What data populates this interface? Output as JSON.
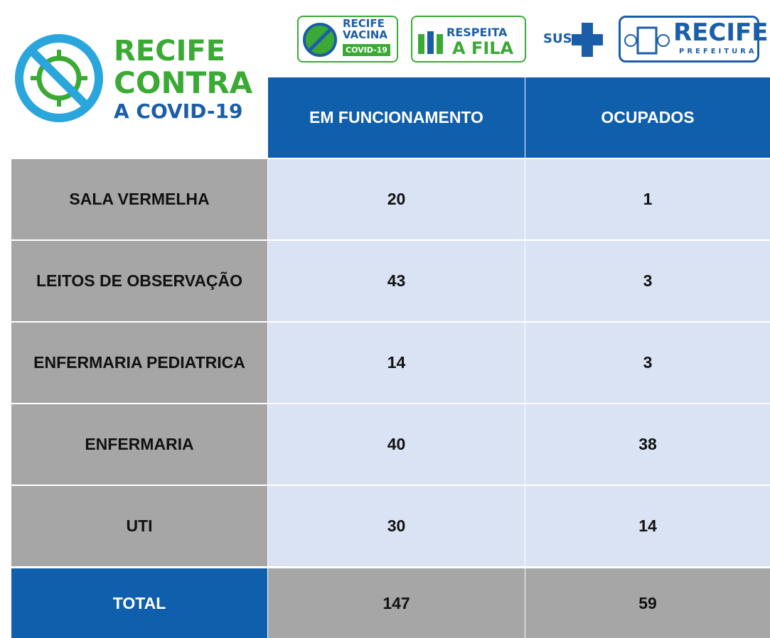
{
  "logos": {
    "main": [
      "RECIFE",
      "CONTRA",
      "A COVID-19"
    ],
    "vacina": [
      "RECIFE",
      "VACINA",
      "COVID-19"
    ],
    "fila": [
      "RESPEITA",
      "A FILA"
    ],
    "sus": "SUS",
    "prefeitura": [
      "RECIFE",
      "PREFEITURA"
    ]
  },
  "table": {
    "header": [
      "EM FUNCIONAMENTO",
      "OCUPADOS"
    ],
    "rows": [
      [
        "SALA VERMELHA",
        20,
        1
      ],
      [
        "LEITOS DE OBSERVAÇÃO",
        43,
        3
      ],
      [
        "ENFERMARIA PEDIATRICA",
        14,
        3
      ],
      [
        "ENFERMARIA",
        40,
        38
      ],
      [
        "UTI",
        30,
        14
      ]
    ],
    "total": [
      "TOTAL",
      147,
      59
    ]
  }
}
